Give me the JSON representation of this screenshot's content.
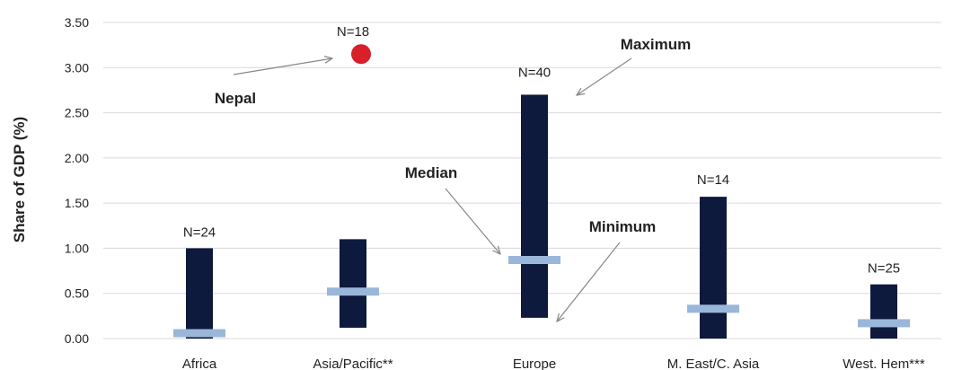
{
  "chart_data": {
    "type": "range-bar",
    "ylabel": "Share of GDP  (%)",
    "ylim": [
      0,
      3.5
    ],
    "yticks": [
      "0.00",
      "0.50",
      "1.00",
      "1.50",
      "2.00",
      "2.50",
      "3.00",
      "3.50"
    ],
    "grid": true,
    "categories": [
      "Africa",
      "Asia/Pacific**",
      "Europe",
      "M. East/C. Asia",
      "West. Hem***"
    ],
    "series": [
      {
        "name": "Minimum",
        "values": [
          0.0,
          0.12,
          0.23,
          0.0,
          0.0
        ]
      },
      {
        "name": "Maximum",
        "values": [
          1.0,
          1.1,
          2.7,
          1.57,
          0.6
        ]
      },
      {
        "name": "Median",
        "values": [
          0.06,
          0.52,
          0.87,
          0.33,
          0.17
        ]
      }
    ],
    "n_labels": [
      "N=24",
      "N=18",
      "N=40",
      "N=14",
      "N=25"
    ],
    "outlier": {
      "label": "Nepal",
      "category": "Asia/Pacific**",
      "value": 3.15,
      "color": "#d7202a"
    },
    "annotations": [
      "Maximum",
      "Median",
      "Minimum",
      "Nepal"
    ],
    "colors": {
      "range_bar": "#0d1a3d",
      "median": "#9ab7d9",
      "grid": "#d9d9d9",
      "outlier": "#d7202a"
    }
  }
}
